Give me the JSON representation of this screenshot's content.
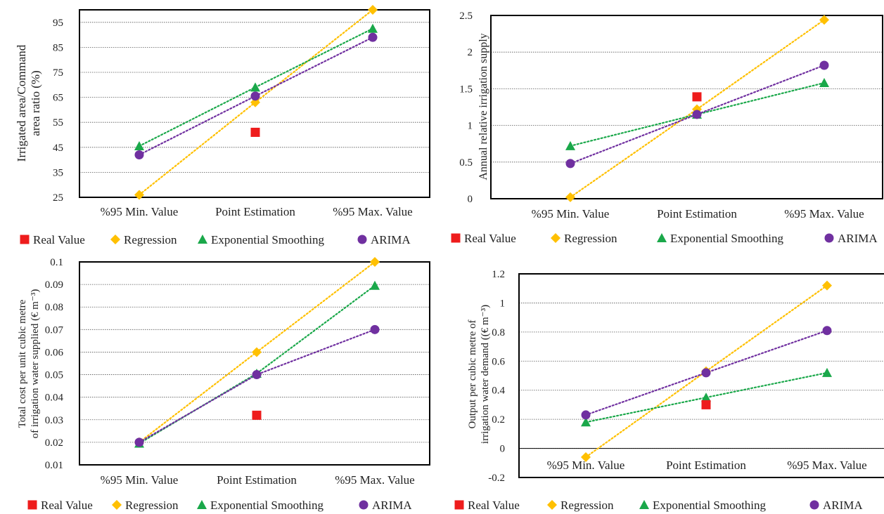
{
  "colors": {
    "real_value": "#ee1c1c",
    "regression": "#ffc000",
    "exponential_smoothing": "#1aa84a",
    "arima": "#7030a0",
    "frame": "#000000",
    "gridline": "#555555"
  },
  "chart_data": [
    {
      "type": "scatter",
      "ylabel": "Irrigated area/Command area ratio (%)",
      "ylabel_lines": [
        "Irrigated area/Command",
        "area ratio (%)"
      ],
      "categories": [
        "%95 Min. Value",
        "Point Estimation",
        "%95 Max. Value"
      ],
      "ylim": [
        25,
        100
      ],
      "yticks": [
        25,
        35,
        45,
        55,
        65,
        75,
        85,
        95
      ],
      "ytick_labels": [
        "25",
        "35",
        "45",
        "55",
        "65",
        "75",
        "85",
        "95"
      ],
      "grid": true,
      "legend": "bottom",
      "series": [
        {
          "name": "Real Value",
          "key": "real_value",
          "marker": "square",
          "trend": false,
          "values": [
            null,
            51,
            null
          ]
        },
        {
          "name": "Regression",
          "key": "regression",
          "marker": "diamond",
          "trend": true,
          "values": [
            26,
            63,
            100
          ]
        },
        {
          "name": "Exponential Smoothing",
          "key": "exponential_smoothing",
          "marker": "triangle",
          "trend": true,
          "values": [
            45.5,
            69,
            92.5
          ]
        },
        {
          "name": "ARIMA",
          "key": "arima",
          "marker": "circle",
          "trend": true,
          "values": [
            42,
            65.5,
            89
          ]
        }
      ]
    },
    {
      "type": "scatter",
      "ylabel": "Annual relative irrigation supply",
      "ylabel_lines": [
        "Annual relative irrigation supply"
      ],
      "categories": [
        "%95 Min. Value",
        "Point Estimation",
        "%95 Max. Value"
      ],
      "ylim": [
        0,
        2.5
      ],
      "yticks": [
        0,
        0.5,
        1,
        1.5,
        2,
        2.5
      ],
      "ytick_labels": [
        "0",
        "0.5",
        "1",
        "1.5",
        "2",
        "2.5"
      ],
      "grid": true,
      "legend": "bottom",
      "series": [
        {
          "name": "Real Value",
          "key": "real_value",
          "marker": "square",
          "trend": false,
          "values": [
            null,
            1.39,
            null
          ]
        },
        {
          "name": "Regression",
          "key": "regression",
          "marker": "diamond",
          "trend": true,
          "values": [
            0.02,
            1.22,
            2.44
          ]
        },
        {
          "name": "Exponential Smoothing",
          "key": "exponential_smoothing",
          "marker": "triangle",
          "trend": true,
          "values": [
            0.72,
            1.15,
            1.58
          ]
        },
        {
          "name": "ARIMA",
          "key": "arima",
          "marker": "circle",
          "trend": true,
          "values": [
            0.48,
            1.15,
            1.82
          ]
        }
      ]
    },
    {
      "type": "scatter",
      "ylabel": "Total cost per unit cubic metre of irrigation water supplied (€ m-3)",
      "ylabel_lines": [
        "Total cost per unit cubic metre",
        "of irrigation water supplied (€ m⁻³)"
      ],
      "categories": [
        "%95 Min. Value",
        "Point Estimation",
        "%95 Max. Value"
      ],
      "ylim": [
        0.01,
        0.1
      ],
      "yticks": [
        0.01,
        0.02,
        0.03,
        0.04,
        0.05,
        0.06,
        0.07,
        0.08,
        0.09,
        0.1
      ],
      "ytick_labels": [
        "0.01",
        "0.02",
        "0.03",
        "0.04",
        "0.05",
        "0.06",
        "0.07",
        "0.08",
        "0.09",
        "0.1"
      ],
      "grid": true,
      "legend": "bottom",
      "series": [
        {
          "name": "Real Value",
          "key": "real_value",
          "marker": "square",
          "trend": false,
          "values": [
            null,
            0.032,
            null
          ]
        },
        {
          "name": "Regression",
          "key": "regression",
          "marker": "diamond",
          "trend": true,
          "values": [
            0.02,
            0.06,
            0.1
          ]
        },
        {
          "name": "Exponential Smoothing",
          "key": "exponential_smoothing",
          "marker": "triangle",
          "trend": true,
          "values": [
            0.0195,
            0.0505,
            0.0895
          ]
        },
        {
          "name": "ARIMA",
          "key": "arima",
          "marker": "circle",
          "trend": true,
          "values": [
            0.02,
            0.05,
            0.07
          ]
        }
      ]
    },
    {
      "type": "scatter",
      "ylabel": "Output per cubic metre of irrigation water demand ((€ m-3)",
      "ylabel_lines": [
        "Output per cubic metre of",
        "irrigation water demand ((€ m⁻³)"
      ],
      "categories": [
        "%95 Min. Value",
        "Point Estimation",
        "%95 Max. Value"
      ],
      "ylim": [
        -0.2,
        1.2
      ],
      "yticks": [
        -0.2,
        0,
        0.2,
        0.4,
        0.6,
        0.8,
        1,
        1.2
      ],
      "ytick_labels": [
        "-0.2",
        "0",
        "0.2",
        "0.4",
        "0.6",
        "0.8",
        "1",
        "1.2"
      ],
      "grid": true,
      "legend": "bottom",
      "series": [
        {
          "name": "Real Value",
          "key": "real_value",
          "marker": "square",
          "trend": false,
          "values": [
            null,
            0.3,
            null
          ]
        },
        {
          "name": "Regression",
          "key": "regression",
          "marker": "diamond",
          "trend": true,
          "values": [
            -0.06,
            0.53,
            1.12
          ]
        },
        {
          "name": "Exponential Smoothing",
          "key": "exponential_smoothing",
          "marker": "triangle",
          "trend": true,
          "values": [
            0.18,
            0.35,
            0.52
          ]
        },
        {
          "name": "ARIMA",
          "key": "arima",
          "marker": "circle",
          "trend": true,
          "values": [
            0.23,
            0.52,
            0.81
          ]
        }
      ]
    }
  ]
}
